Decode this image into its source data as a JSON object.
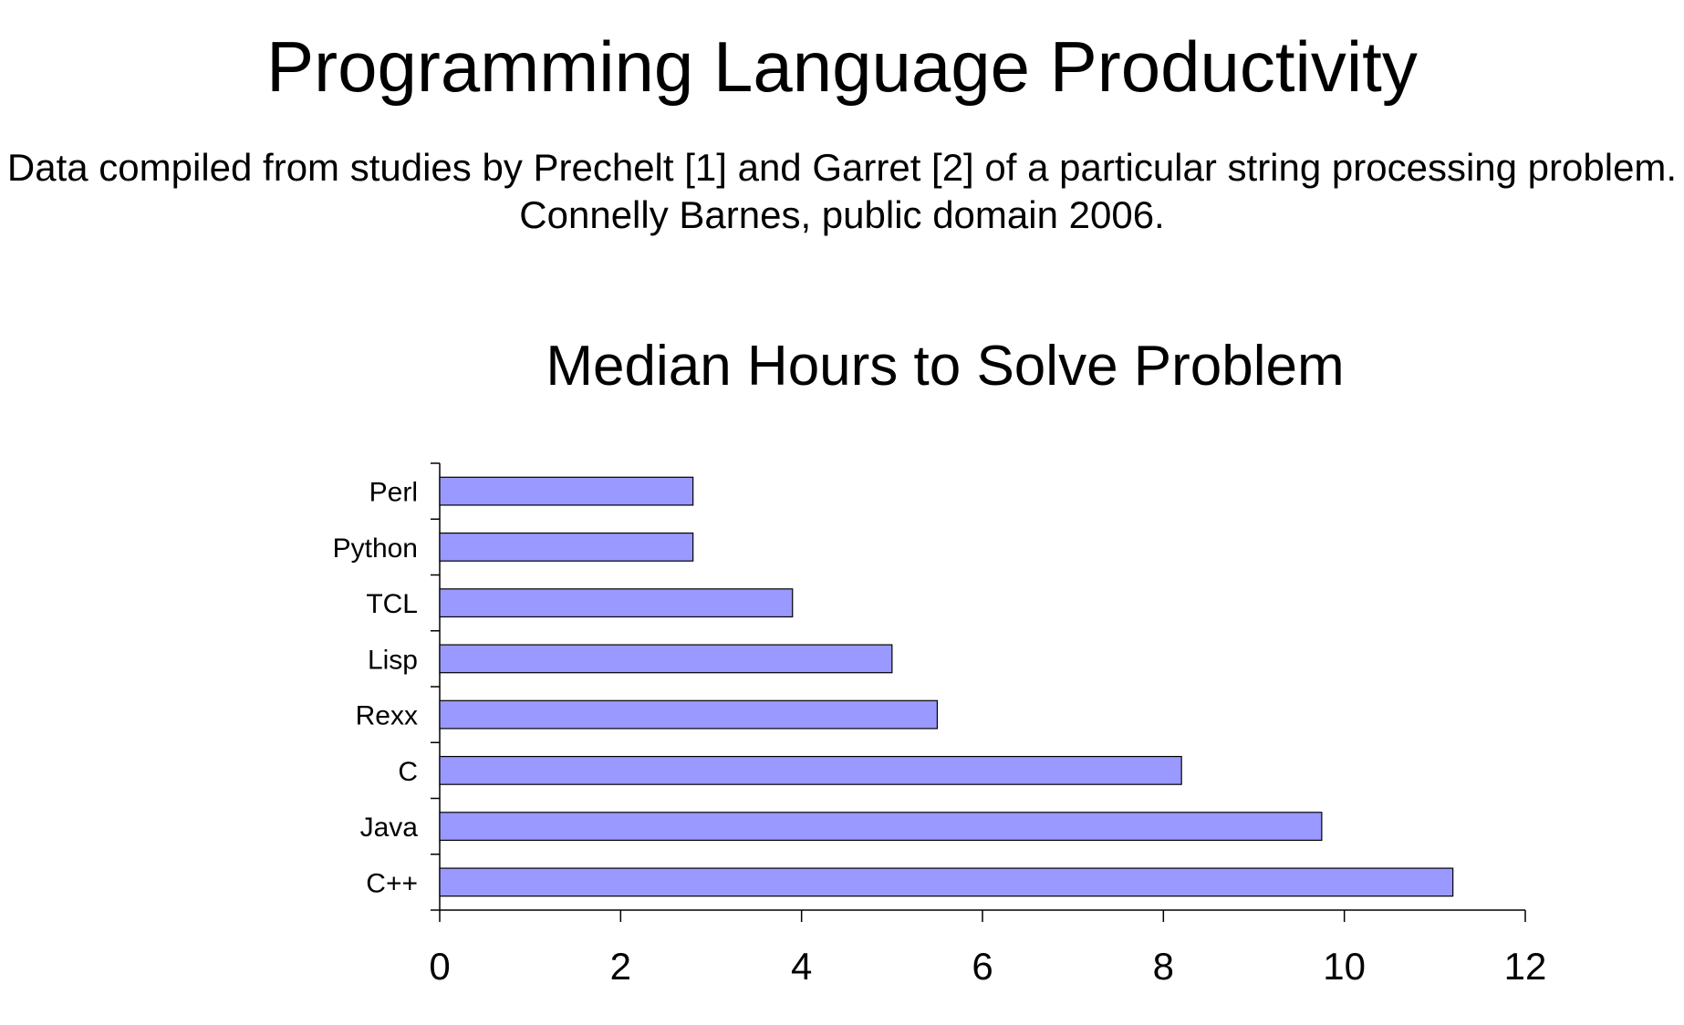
{
  "header": {
    "title": "Programming Language Productivity",
    "subtitle_line1": "Data compiled from studies by Prechelt [1] and Garret [2] of a particular string processing problem.",
    "subtitle_line2": "Connelly Barnes, public domain 2006."
  },
  "chart_data": {
    "type": "bar",
    "orientation": "horizontal",
    "title": "Median Hours to Solve Problem",
    "xlabel": "",
    "ylabel": "",
    "categories": [
      "Perl",
      "Python",
      "TCL",
      "Lisp",
      "Rexx",
      "C",
      "Java",
      "C++"
    ],
    "values": [
      2.8,
      2.8,
      3.9,
      5.0,
      5.5,
      8.2,
      9.75,
      11.2
    ],
    "xlim": [
      0,
      12
    ],
    "xticks": [
      0,
      2,
      4,
      6,
      8,
      10,
      12
    ],
    "xtick_labels": [
      "0",
      "2",
      "4",
      "6",
      "8",
      "10",
      "12"
    ],
    "grid": false,
    "legend": "none",
    "bar_color": "#9999ff",
    "bar_edge_color": "#000000"
  }
}
